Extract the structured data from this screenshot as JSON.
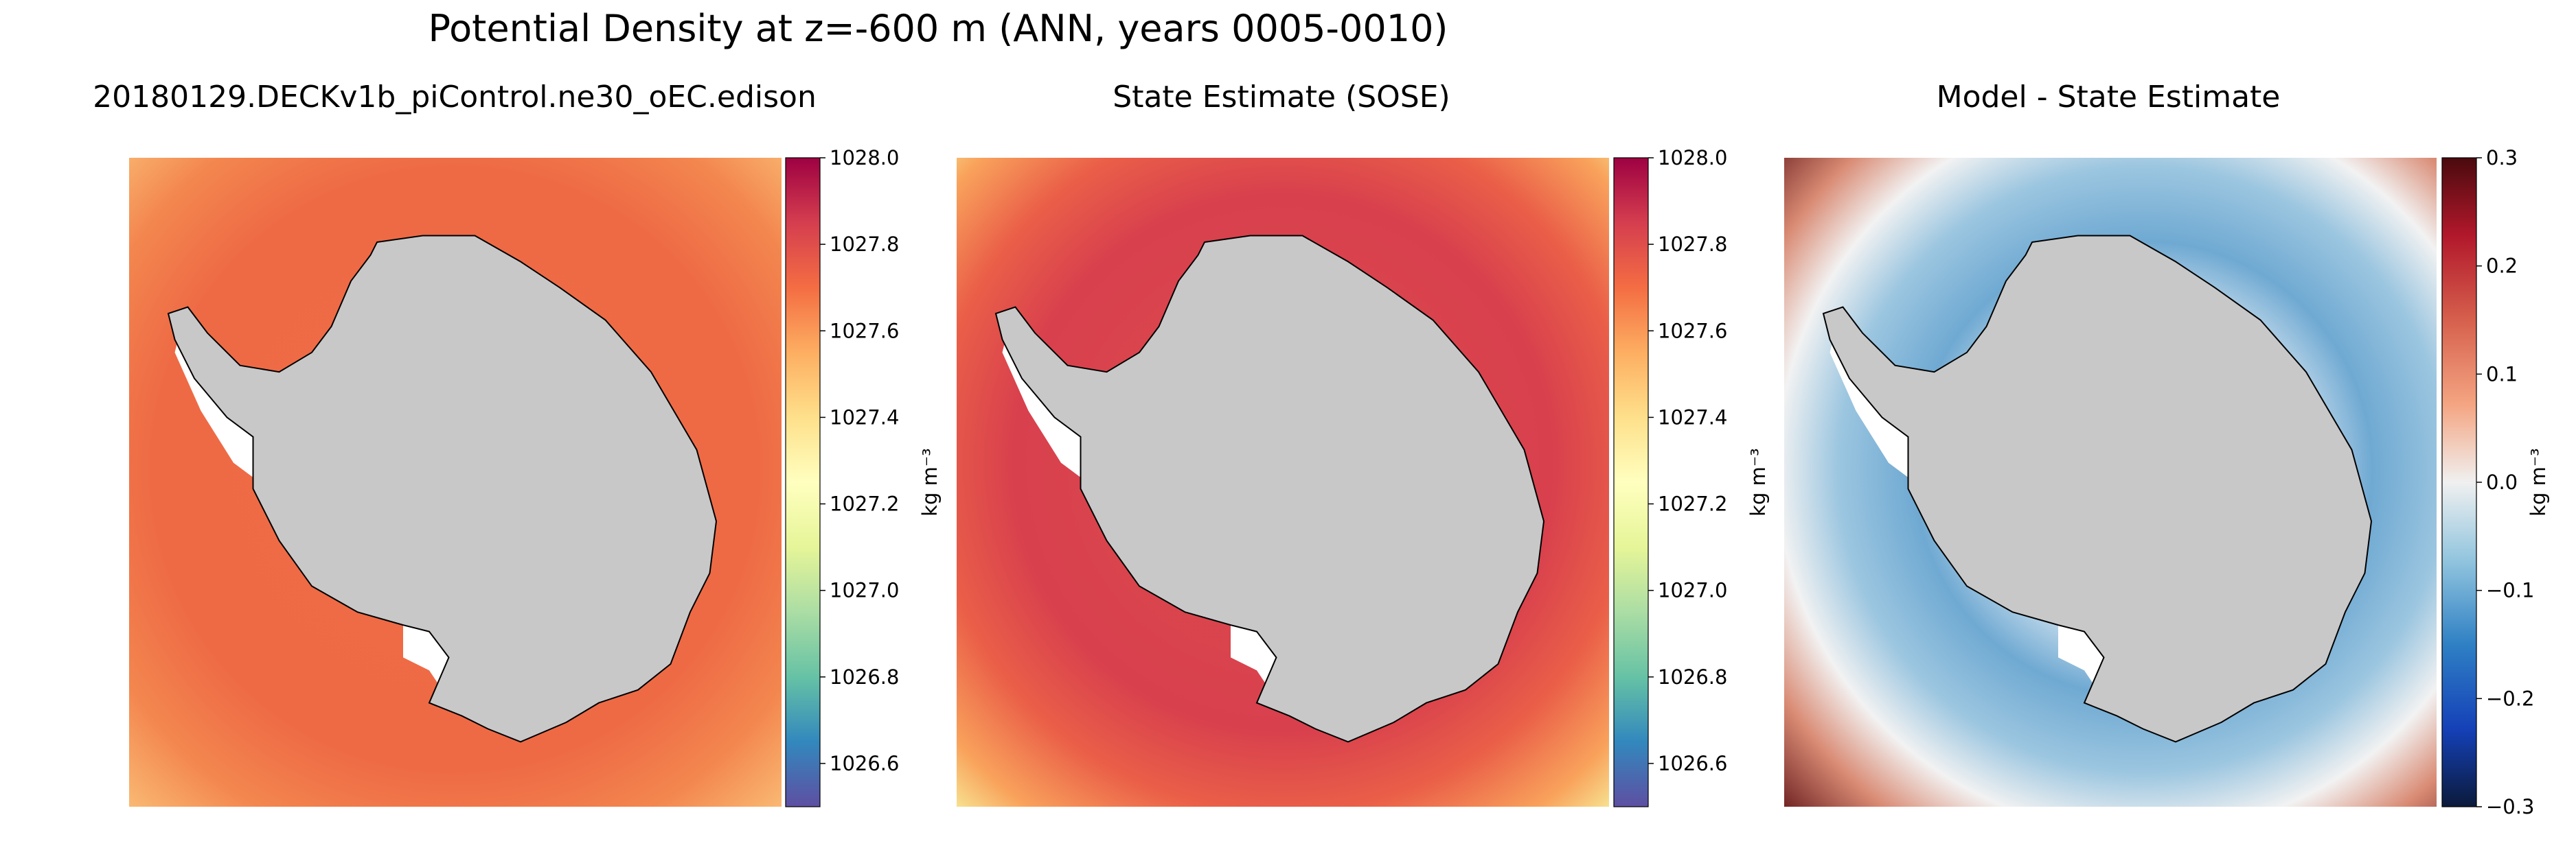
{
  "chart_data": {
    "suptitle": "Potential Density at z=-600 m (ANN, years 0005-0010)",
    "type": "heatmap",
    "panels": [
      {
        "title": "20180129.DECKv1b_piControl.ne30_oEC.edison",
        "colormap": "Spectral_r",
        "range": [
          1026.5,
          1028.0
        ],
        "colorbar": {
          "label": "kg m⁻³",
          "ticks": [
            1026.6,
            1026.8,
            1027.0,
            1027.2,
            1027.4,
            1027.6,
            1027.8,
            1028.0
          ],
          "tick_labels": [
            "1026.6",
            "1026.8",
            "1027.0",
            "1027.2",
            "1027.4",
            "1027.6",
            "1027.8",
            "1028.0"
          ]
        },
        "colors": {
          "ocean": "#ee6a45",
          "edge": "#f6a562",
          "land": "#c8c8c8"
        }
      },
      {
        "title": "State Estimate (SOSE)",
        "colormap": "Spectral_r",
        "range": [
          1026.5,
          1028.0
        ],
        "colorbar": {
          "label": "kg m⁻³",
          "ticks": [
            1026.6,
            1026.8,
            1027.0,
            1027.2,
            1027.4,
            1027.6,
            1027.8,
            1028.0
          ],
          "tick_labels": [
            "1026.6",
            "1026.8",
            "1027.0",
            "1027.2",
            "1027.4",
            "1027.6",
            "1027.8",
            "1028.0"
          ]
        },
        "colors": {
          "ocean": "#d8404d",
          "edge": "#fbe08a",
          "land": "#c8c8c8"
        }
      },
      {
        "title": "Model - State Estimate",
        "colormap": "RdBu_r",
        "range": [
          -0.3,
          0.3
        ],
        "colorbar": {
          "label": "kg m⁻³",
          "ticks": [
            -0.3,
            -0.2,
            -0.1,
            0.0,
            0.1,
            0.2,
            0.3
          ],
          "tick_labels": [
            "−0.3",
            "−0.2",
            "−0.1",
            "0.0",
            "0.1",
            "0.2",
            "0.3"
          ]
        },
        "colors": {
          "ocean": "#7fb3d5",
          "edge": "#b23c3c",
          "land": "#c8c8c8"
        }
      }
    ]
  }
}
